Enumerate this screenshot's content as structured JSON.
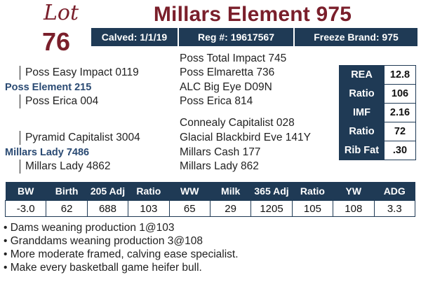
{
  "lot": {
    "word": "Lot",
    "number": "76"
  },
  "title": "Millars Element 975",
  "info_bar": {
    "calved": "Calved: 1/1/19",
    "reg": "Reg #: 19617567",
    "freeze": "Freeze Brand: 975"
  },
  "pedigree": {
    "sire_side": {
      "sire_of_sire": "Poss Easy Impact 0119",
      "sire": "Poss Element 215",
      "dam_of_sire": "Poss Erica 004",
      "right": [
        "Poss Total Impact 745",
        "Poss Elmaretta 736",
        "ALC Big Eye D09N",
        "Poss Erica 814"
      ]
    },
    "dam_side": {
      "sire_of_dam": "Pyramid Capitalist 3004",
      "dam": "Millars Lady 7486",
      "dam_of_dam": "Millars Lady 4862",
      "right": [
        "Connealy Capitalist 028",
        "Glacial Blackbird Eve 141Y",
        "Millars Cash 177",
        "Millars Lady 862"
      ]
    }
  },
  "side_table": [
    {
      "label": "REA",
      "value": "12.8"
    },
    {
      "label": "Ratio",
      "value": "106"
    },
    {
      "label": "IMF",
      "value": "2.16"
    },
    {
      "label": "Ratio",
      "value": "72"
    },
    {
      "label": "Rib Fat",
      "value": ".30"
    }
  ],
  "epd_table": {
    "headers": [
      "BW",
      "Birth",
      "205 Adj",
      "Ratio",
      "WW",
      "Milk",
      "365 Adj",
      "Ratio",
      "YW",
      "ADG"
    ],
    "values": [
      "-3.0",
      "62",
      "688",
      "103",
      "65",
      "29",
      "1205",
      "105",
      "108",
      "3.3"
    ]
  },
  "notes": [
    "• Dams weaning production 1@103",
    "• Granddams weaning production 3@108",
    "• More moderate framed, calving ease specialist.",
    "• Make every basketball game heifer bull."
  ]
}
